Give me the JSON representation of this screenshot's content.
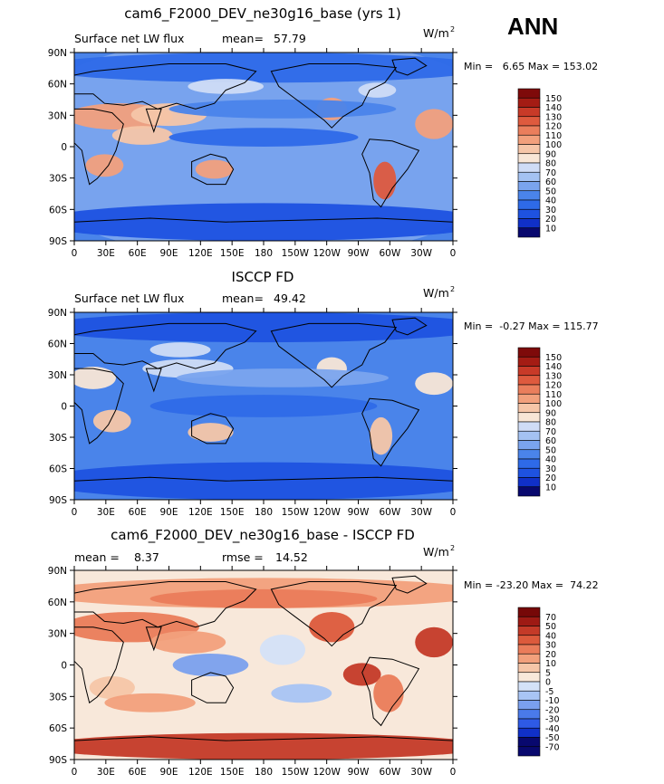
{
  "season": "ANN",
  "colors": {
    "abs_scale": [
      "#08086e",
      "#1030c8",
      "#1e52e0",
      "#2e6ae8",
      "#4a84ea",
      "#7aa4ee",
      "#a4c2f2",
      "#cfdcf6",
      "#f8e6d6",
      "#f6c6a8",
      "#f2a07c",
      "#ea7e5c",
      "#de5a3e",
      "#c83a28",
      "#a41c14",
      "#7e0a0a"
    ],
    "diff_scale": [
      "#08086e",
      "#1030c8",
      "#2e5ae6",
      "#4a7aea",
      "#7aa0ee",
      "#a8c4f4",
      "#d4e2f8",
      "#f8e8da",
      "#f6c6a8",
      "#f2a07c",
      "#ea7c5a",
      "#dc5a3c",
      "#c43a28",
      "#9e1a14",
      "#760808"
    ]
  },
  "chart_data": [
    {
      "type": "heatmap",
      "title": "cam6_F2000_DEV_ne30g16_base (yrs 1)",
      "variable": "Surface net LW flux",
      "stat_label": "mean=",
      "stat_value": "57.79",
      "units_base": "W/m",
      "units_exp": "2",
      "range_text": "Min =   6.65 Max = 153.02",
      "colorbar_labels": [
        "150",
        "140",
        "130",
        "120",
        "110",
        "100",
        "90",
        "80",
        "70",
        "60",
        "50",
        "40",
        "30",
        "20",
        "10"
      ],
      "lat_ticks": [
        "90N",
        "60N",
        "30N",
        "0",
        "30S",
        "60S",
        "90S"
      ],
      "lon_ticks": [
        "0",
        "30E",
        "60E",
        "90E",
        "120E",
        "150E",
        "180",
        "150W",
        "120W",
        "90W",
        "60W",
        "30W",
        "0"
      ]
    },
    {
      "type": "heatmap",
      "title": "ISCCP FD",
      "variable": "Surface net LW flux",
      "stat_label": "mean=",
      "stat_value": "49.42",
      "units_base": "W/m",
      "units_exp": "2",
      "range_text": "Min =  -0.27 Max = 115.77",
      "colorbar_labels": [
        "150",
        "140",
        "130",
        "120",
        "110",
        "100",
        "90",
        "80",
        "70",
        "60",
        "50",
        "40",
        "30",
        "20",
        "10"
      ],
      "lat_ticks": [
        "90N",
        "60N",
        "30N",
        "0",
        "30S",
        "60S",
        "90S"
      ],
      "lon_ticks": [
        "0",
        "30E",
        "60E",
        "90E",
        "120E",
        "150E",
        "180",
        "150W",
        "120W",
        "90W",
        "60W",
        "30W",
        "0"
      ]
    },
    {
      "type": "heatmap",
      "title": "cam6_F2000_DEV_ne30g16_base - ISCCP FD",
      "variable": "mean =",
      "stat_label": "",
      "stat_value": "8.37",
      "rmse_label": "rmse =",
      "rmse_value": "14.52",
      "units_base": "W/m",
      "units_exp": "2",
      "range_text": "Min = -23.20 Max =  74.22",
      "colorbar_labels": [
        "70",
        "50",
        "40",
        "30",
        "20",
        "10",
        "5",
        "0",
        "-5",
        "-10",
        "-20",
        "-30",
        "-40",
        "-50",
        "-70"
      ],
      "lat_ticks": [
        "90N",
        "60N",
        "30N",
        "0",
        "30S",
        "60S",
        "90S"
      ],
      "lon_ticks": [
        "0",
        "30E",
        "60E",
        "90E",
        "120E",
        "150E",
        "180",
        "150W",
        "120W",
        "90W",
        "60W",
        "30W",
        "0"
      ]
    }
  ]
}
